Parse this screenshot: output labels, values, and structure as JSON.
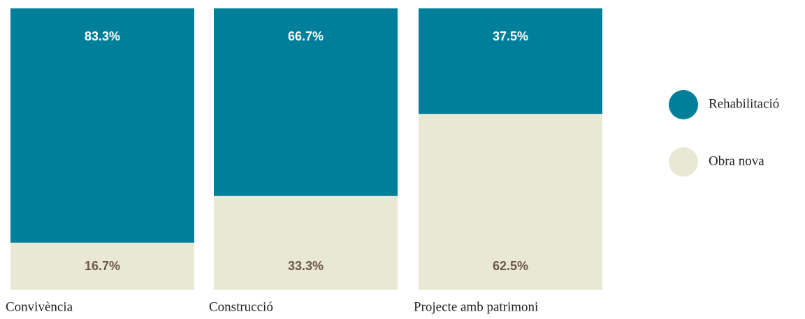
{
  "chart_data": {
    "type": "stacked_bar",
    "categories": [
      "Convivència",
      "Construcció",
      "Projecte amb patrimoni"
    ],
    "series": [
      {
        "name": "Rehabilitació",
        "color": "#007f9b",
        "label_color": "#ffffff",
        "values": [
          83.3,
          66.7,
          37.5
        ],
        "value_labels": [
          "83.3%",
          "66.7%",
          "37.5%"
        ]
      },
      {
        "name": "Obra nova",
        "color": "#e9e8d2",
        "label_color": "#6b5848",
        "values": [
          16.7,
          33.3,
          62.5
        ],
        "value_labels": [
          "16.7%",
          "33.3%",
          "62.5%"
        ]
      }
    ],
    "ylim": [
      0,
      100
    ],
    "legend": "right"
  }
}
